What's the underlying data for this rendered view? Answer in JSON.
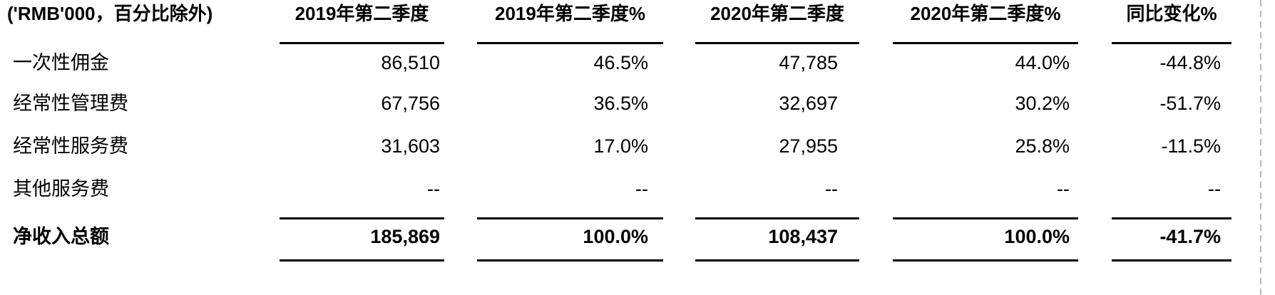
{
  "table": {
    "unit_header": "('RMB'000，百分比除外)",
    "columns": [
      "2019年第二季度",
      "2019年第二季度%",
      "2020年第二季度",
      "2020年第二季度%",
      "同比变化%"
    ],
    "rows": [
      {
        "label": "一次性佣金",
        "values": [
          "86,510",
          "46.5%",
          "47,785",
          "44.0%",
          "-44.8%"
        ]
      },
      {
        "label": "经常性管理费",
        "values": [
          "67,756",
          "36.5%",
          "32,697",
          "30.2%",
          "-51.7%"
        ]
      },
      {
        "label": "经常性服务费",
        "values": [
          "31,603",
          "17.0%",
          "27,955",
          "25.8%",
          "-11.5%"
        ]
      },
      {
        "label": "其他服务费",
        "values": [
          "--",
          "--",
          "--",
          "--",
          "--"
        ]
      }
    ],
    "total_row": {
      "label": "净收入总额",
      "values": [
        "185,869",
        "100.0%",
        "108,437",
        "100.0%",
        "-41.7%"
      ]
    }
  },
  "colors": {
    "text": "#000000",
    "rule": "#000000",
    "page_boundary_dash": "#b9b9b9",
    "background": "#ffffff"
  }
}
